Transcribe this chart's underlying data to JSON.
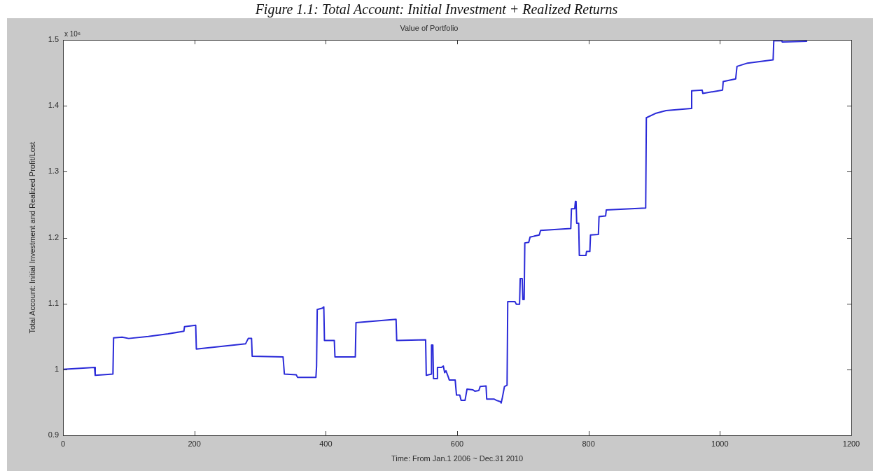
{
  "chart_data": {
    "type": "line",
    "title": "Value of Portfolio",
    "xlabel": "Time: From Jan.1 2006 ~ Dec.31 2010",
    "ylabel": "Total Account: Initial Investment and Realized Profit/Lost",
    "annotations": [
      "Figure 1.1: Total Account: Initial Investment + Realized Returns",
      "x 10⁶"
    ],
    "x": [
      0,
      48,
      49,
      76,
      77,
      90,
      100,
      130,
      160,
      184,
      185,
      202,
      203,
      278,
      282,
      287,
      288,
      335,
      337,
      355,
      357,
      385,
      386,
      387,
      395,
      397,
      398,
      413,
      414,
      445,
      446,
      507,
      508,
      552,
      553,
      561,
      561,
      563,
      564,
      570,
      570,
      576,
      579,
      581,
      583,
      586,
      588,
      597,
      599,
      604,
      606,
      612,
      615,
      624,
      627,
      633,
      635,
      644,
      645,
      656,
      660,
      666,
      667,
      669,
      672,
      676,
      677,
      688,
      690,
      695,
      696,
      699,
      700,
      702,
      703,
      709,
      711,
      725,
      727,
      773,
      774,
      779,
      780,
      781,
      782,
      785,
      786,
      796,
      797,
      802,
      803,
      815,
      816,
      826,
      827,
      887,
      888,
      903,
      918,
      956,
      957,
      973,
      974,
      1004,
      1005,
      1024,
      1026,
      1042,
      1081,
      1082,
      1094,
      1095,
      1132
    ],
    "values": [
      1.0,
      1.003,
      0.991,
      0.993,
      1.048,
      1.049,
      1.047,
      1.05,
      1.054,
      1.058,
      1.065,
      1.067,
      1.031,
      1.039,
      1.047,
      1.047,
      1.02,
      1.019,
      0.993,
      0.992,
      0.988,
      0.988,
      1.005,
      1.091,
      1.093,
      1.095,
      1.044,
      1.044,
      1.019,
      1.019,
      1.071,
      1.076,
      1.044,
      1.045,
      0.991,
      0.993,
      1.037,
      1.037,
      0.986,
      0.986,
      1.003,
      1.003,
      1.005,
      0.995,
      0.998,
      0.99,
      0.984,
      0.984,
      0.961,
      0.961,
      0.953,
      0.953,
      0.97,
      0.969,
      0.967,
      0.968,
      0.974,
      0.975,
      0.955,
      0.955,
      0.953,
      0.951,
      0.949,
      0.958,
      0.974,
      0.976,
      1.103,
      1.103,
      1.099,
      1.099,
      1.138,
      1.138,
      1.106,
      1.106,
      1.192,
      1.193,
      1.201,
      1.204,
      1.211,
      1.214,
      1.244,
      1.244,
      1.255,
      1.255,
      1.222,
      1.222,
      1.173,
      1.173,
      1.179,
      1.179,
      1.204,
      1.205,
      1.232,
      1.233,
      1.242,
      1.245,
      1.382,
      1.389,
      1.393,
      1.396,
      1.423,
      1.424,
      1.419,
      1.424,
      1.437,
      1.441,
      1.46,
      1.465,
      1.47,
      1.499,
      1.499,
      1.497,
      1.498
    ],
    "color": "#2a2ad8",
    "xlim": [
      0,
      1200
    ],
    "xticks": [
      0,
      200,
      400,
      600,
      800,
      1000,
      1200
    ],
    "ylim": [
      0.9,
      1.5
    ],
    "yticks": [
      0.9,
      1,
      1.1,
      1.2,
      1.3,
      1.4,
      1.5
    ]
  }
}
